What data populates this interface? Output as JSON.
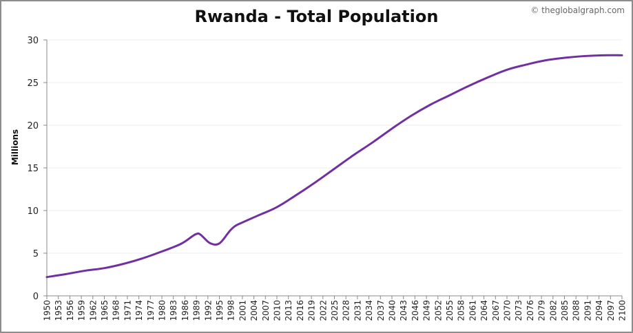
{
  "chart_data": {
    "type": "line",
    "title": "Rwanda - Total Population",
    "credit": "© theglobalgraph.com",
    "ylabel": "Millions",
    "xlabel": "",
    "ylim": [
      0,
      30
    ],
    "yticks": [
      0,
      5,
      10,
      15,
      20,
      25,
      30
    ],
    "xtick_labels": [
      "1950",
      "1953",
      "1956",
      "1959",
      "1962",
      "1965",
      "1968",
      "1971",
      "1974",
      "1977",
      "1980",
      "1983",
      "1986",
      "1989",
      "1992",
      "1995",
      "1998",
      "2001",
      "2004",
      "2007",
      "2010",
      "2013",
      "2016",
      "2019",
      "2022",
      "2025",
      "2028",
      "2031",
      "2034",
      "2037",
      "2040",
      "2043",
      "2046",
      "2049",
      "2052",
      "2055",
      "2058",
      "2061",
      "2064",
      "2067",
      "2070",
      "2073",
      "2076",
      "2079",
      "2082",
      "2085",
      "2088",
      "2091",
      "2094",
      "2097",
      "2100"
    ],
    "grid": true,
    "line_color": "#7030a0",
    "series": [
      {
        "x": [
          1950,
          1955,
          1960,
          1965,
          1970,
          1975,
          1980,
          1985,
          1988,
          1989,
          1990,
          1992,
          1993,
          1994,
          1995,
          1996,
          1997,
          1998,
          1999,
          2000,
          2001,
          2002,
          2005,
          2010,
          2015,
          2020,
          2025,
          2030,
          2035,
          2040,
          2045,
          2050,
          2055,
          2060,
          2065,
          2070,
          2075,
          2080,
          2085,
          2090,
          2095,
          2100
        ],
        "y": [
          2.2,
          2.55,
          2.95,
          3.25,
          3.75,
          4.4,
          5.2,
          6.1,
          7.0,
          7.25,
          7.2,
          6.35,
          6.1,
          6.0,
          6.15,
          6.6,
          7.2,
          7.75,
          8.15,
          8.4,
          8.6,
          8.8,
          9.4,
          10.4,
          11.8,
          13.3,
          14.9,
          16.5,
          18.0,
          19.6,
          21.1,
          22.4,
          23.5,
          24.6,
          25.6,
          26.5,
          27.1,
          27.6,
          27.9,
          28.1,
          28.2,
          28.2
        ]
      }
    ]
  }
}
